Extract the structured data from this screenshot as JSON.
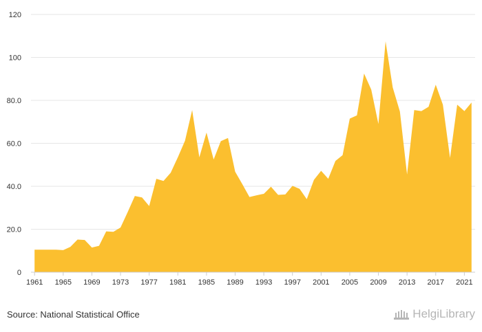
{
  "chart_data": {
    "type": "area",
    "x": [
      1961,
      1962,
      1963,
      1964,
      1965,
      1966,
      1967,
      1968,
      1969,
      1970,
      1971,
      1972,
      1973,
      1974,
      1975,
      1976,
      1977,
      1978,
      1979,
      1980,
      1981,
      1982,
      1983,
      1984,
      1985,
      1986,
      1987,
      1988,
      1989,
      1990,
      1991,
      1992,
      1993,
      1994,
      1995,
      1996,
      1997,
      1998,
      1999,
      2000,
      2001,
      2002,
      2003,
      2004,
      2005,
      2006,
      2007,
      2008,
      2009,
      2010,
      2011,
      2012,
      2013,
      2014,
      2015,
      2016,
      2017,
      2018,
      2019,
      2020,
      2021,
      2022
    ],
    "series": [
      {
        "values": [
          10.5,
          10.5,
          10.5,
          10.5,
          10.3,
          11.8,
          15.2,
          15.0,
          11.5,
          12.3,
          19.0,
          18.8,
          20.8,
          28.0,
          35.5,
          34.8,
          30.8,
          43.5,
          42.5,
          46.3,
          53.5,
          61.2,
          75.5,
          53.5,
          65.0,
          52.5,
          61.0,
          62.5,
          46.8,
          41.0,
          35.0,
          35.8,
          36.5,
          39.8,
          36.0,
          36.2,
          40.2,
          38.8,
          34.0,
          43.0,
          47.2,
          43.5,
          51.8,
          54.5,
          71.5,
          73.0,
          92.5,
          85.0,
          69.0,
          107.5,
          86.0,
          74.8,
          45.5,
          75.5,
          75.0,
          77.0,
          87.3,
          78.0,
          53.2,
          78.0,
          75.0,
          79.0
        ],
        "color": "#fbbf2f"
      }
    ],
    "x_ticks": [
      "1961",
      "1965",
      "1969",
      "1973",
      "1977",
      "1981",
      "1985",
      "1989",
      "1993",
      "1997",
      "2001",
      "2005",
      "2009",
      "2013",
      "2017",
      "2021"
    ],
    "y_ticks": [
      "0",
      "20.0",
      "40.0",
      "60.0",
      "80.0",
      "100",
      "120"
    ],
    "ylim": [
      0,
      120
    ],
    "xlim": [
      1960.5,
      2022.5
    ],
    "grid": true
  },
  "footer": {
    "source": "Source: National Statistical Office",
    "brand": "HelgiLibrary"
  }
}
